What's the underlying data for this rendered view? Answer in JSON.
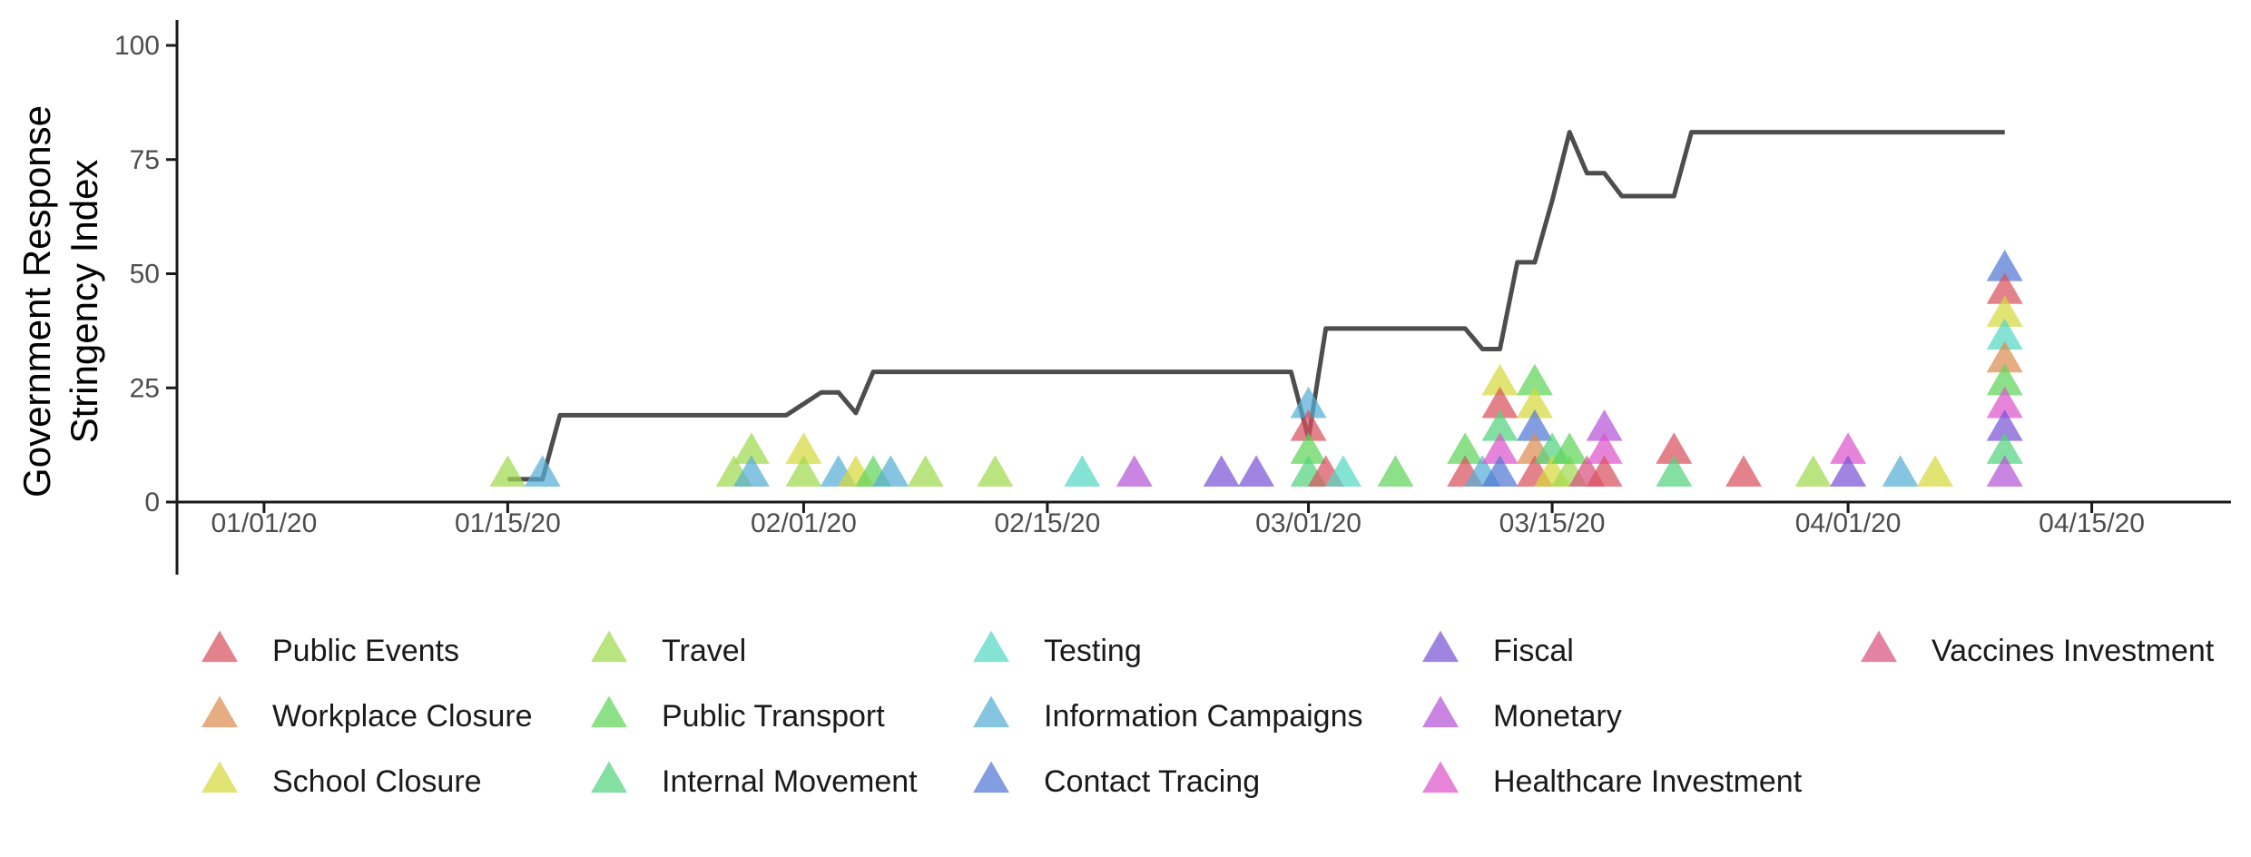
{
  "chart_data": {
    "type": "scatter",
    "ylabel_lines": [
      "Government Response",
      "Stringency Index"
    ],
    "xlabel": "",
    "ylim": [
      -15,
      105
    ],
    "y_ticks": [
      0,
      25,
      50,
      75,
      100
    ],
    "x_range": [
      "2019-12-27",
      "2020-04-23"
    ],
    "x_ticks": [
      {
        "date": "2020-01-01",
        "label": "01/01/20"
      },
      {
        "date": "2020-01-15",
        "label": "01/15/20"
      },
      {
        "date": "2020-02-01",
        "label": "02/01/20"
      },
      {
        "date": "2020-02-15",
        "label": "02/15/20"
      },
      {
        "date": "2020-03-01",
        "label": "03/01/20"
      },
      {
        "date": "2020-03-15",
        "label": "03/15/20"
      },
      {
        "date": "2020-04-01",
        "label": "04/01/20"
      },
      {
        "date": "2020-04-15",
        "label": "04/15/20"
      }
    ],
    "grid": false,
    "legend_position": "bottom",
    "line_color": "#4d4d4d",
    "stringency_line": [
      [
        "2020-01-15",
        5
      ],
      [
        "2020-01-17",
        5
      ],
      [
        "2020-01-18",
        19
      ],
      [
        "2020-01-31",
        19
      ],
      [
        "2020-02-02",
        24
      ],
      [
        "2020-02-03",
        24
      ],
      [
        "2020-02-04",
        19.5
      ],
      [
        "2020-02-05",
        28.5
      ],
      [
        "2020-02-29",
        28.5
      ],
      [
        "2020-03-01",
        14
      ],
      [
        "2020-03-02",
        38
      ],
      [
        "2020-03-10",
        38
      ],
      [
        "2020-03-11",
        33.5
      ],
      [
        "2020-03-12",
        33.5
      ],
      [
        "2020-03-13",
        52.5
      ],
      [
        "2020-03-14",
        52.5
      ],
      [
        "2020-03-15",
        66
      ],
      [
        "2020-03-16",
        81
      ],
      [
        "2020-03-17",
        72
      ],
      [
        "2020-03-18",
        72
      ],
      [
        "2020-03-19",
        67
      ],
      [
        "2020-03-22",
        67
      ],
      [
        "2020-03-23",
        81
      ],
      [
        "2020-04-10",
        81
      ]
    ],
    "categories": [
      {
        "name": "Public Events",
        "color": "#d9525e"
      },
      {
        "name": "Workplace Closure",
        "color": "#dc8e52"
      },
      {
        "name": "School Closure",
        "color": "#d6d83b"
      },
      {
        "name": "Travel",
        "color": "#a0da4e"
      },
      {
        "name": "Public Transport",
        "color": "#5fd45a"
      },
      {
        "name": "Internal Movement",
        "color": "#54d47e"
      },
      {
        "name": "Testing",
        "color": "#55d8c3"
      },
      {
        "name": "Information Campaigns",
        "color": "#56aed6"
      },
      {
        "name": "Contact Tracing",
        "color": "#5279d6"
      },
      {
        "name": "Fiscal",
        "color": "#7a55d6"
      },
      {
        "name": "Monetary",
        "color": "#b655d6"
      },
      {
        "name": "Healthcare Investment",
        "color": "#dc55cc"
      },
      {
        "name": "Vaccines Investment",
        "color": "#d9527f"
      }
    ],
    "events": [
      {
        "date": "2020-01-15",
        "y": 6,
        "category": "Travel"
      },
      {
        "date": "2020-01-17",
        "y": 6,
        "category": "Information Campaigns"
      },
      {
        "date": "2020-01-28",
        "y": 6,
        "category": "Travel"
      },
      {
        "date": "2020-01-29",
        "y": 11,
        "category": "Travel"
      },
      {
        "date": "2020-01-29",
        "y": 6,
        "category": "Information Campaigns"
      },
      {
        "date": "2020-02-01",
        "y": 11,
        "category": "School Closure"
      },
      {
        "date": "2020-02-01",
        "y": 6,
        "category": "Travel"
      },
      {
        "date": "2020-02-03",
        "y": 6,
        "category": "Information Campaigns"
      },
      {
        "date": "2020-02-04",
        "y": 6,
        "category": "School Closure"
      },
      {
        "date": "2020-02-05",
        "y": 6,
        "category": "Public Transport"
      },
      {
        "date": "2020-02-06",
        "y": 6,
        "category": "Information Campaigns"
      },
      {
        "date": "2020-02-08",
        "y": 6,
        "category": "Travel"
      },
      {
        "date": "2020-02-12",
        "y": 6,
        "category": "Travel"
      },
      {
        "date": "2020-02-17",
        "y": 6,
        "category": "Testing"
      },
      {
        "date": "2020-02-20",
        "y": 6,
        "category": "Monetary"
      },
      {
        "date": "2020-02-25",
        "y": 6,
        "category": "Fiscal"
      },
      {
        "date": "2020-02-27",
        "y": 6,
        "category": "Fiscal"
      },
      {
        "date": "2020-03-01",
        "y": 21,
        "category": "Information Campaigns"
      },
      {
        "date": "2020-03-01",
        "y": 16,
        "category": "Public Events"
      },
      {
        "date": "2020-03-01",
        "y": 11,
        "category": "Public Transport"
      },
      {
        "date": "2020-03-01",
        "y": 6,
        "category": "Internal Movement"
      },
      {
        "date": "2020-03-02",
        "y": 6,
        "category": "Public Events"
      },
      {
        "date": "2020-03-03",
        "y": 6,
        "category": "Testing"
      },
      {
        "date": "2020-03-06",
        "y": 6,
        "category": "Public Transport"
      },
      {
        "date": "2020-03-10",
        "y": 11,
        "category": "Public Transport"
      },
      {
        "date": "2020-03-10",
        "y": 6,
        "category": "Public Events"
      },
      {
        "date": "2020-03-11",
        "y": 6,
        "category": "Information Campaigns"
      },
      {
        "date": "2020-03-12",
        "y": 26,
        "category": "School Closure"
      },
      {
        "date": "2020-03-12",
        "y": 21,
        "category": "Public Events"
      },
      {
        "date": "2020-03-12",
        "y": 16,
        "category": "Internal Movement"
      },
      {
        "date": "2020-03-12",
        "y": 11,
        "category": "Healthcare Investment"
      },
      {
        "date": "2020-03-12",
        "y": 6,
        "category": "Contact Tracing"
      },
      {
        "date": "2020-03-14",
        "y": 26,
        "category": "Public Transport"
      },
      {
        "date": "2020-03-14",
        "y": 21,
        "category": "School Closure"
      },
      {
        "date": "2020-03-14",
        "y": 16,
        "category": "Contact Tracing"
      },
      {
        "date": "2020-03-14",
        "y": 11,
        "category": "Workplace Closure"
      },
      {
        "date": "2020-03-14",
        "y": 6,
        "category": "Public Events"
      },
      {
        "date": "2020-03-15",
        "y": 11,
        "category": "Internal Movement"
      },
      {
        "date": "2020-03-15",
        "y": 6,
        "category": "School Closure"
      },
      {
        "date": "2020-03-16",
        "y": 6,
        "category": "Travel"
      },
      {
        "date": "2020-03-16",
        "y": 11,
        "category": "Public Transport"
      },
      {
        "date": "2020-03-17",
        "y": 6,
        "category": "Vaccines Investment"
      },
      {
        "date": "2020-03-18",
        "y": 16,
        "category": "Monetary"
      },
      {
        "date": "2020-03-18",
        "y": 11,
        "category": "Healthcare Investment"
      },
      {
        "date": "2020-03-18",
        "y": 6,
        "category": "Public Events"
      },
      {
        "date": "2020-03-22",
        "y": 11,
        "category": "Public Events"
      },
      {
        "date": "2020-03-22",
        "y": 6,
        "category": "Internal Movement"
      },
      {
        "date": "2020-03-26",
        "y": 6,
        "category": "Public Events"
      },
      {
        "date": "2020-03-30",
        "y": 6,
        "category": "Travel"
      },
      {
        "date": "2020-04-01",
        "y": 11,
        "category": "Healthcare Investment"
      },
      {
        "date": "2020-04-01",
        "y": 6,
        "category": "Fiscal"
      },
      {
        "date": "2020-04-04",
        "y": 6,
        "category": "Information Campaigns"
      },
      {
        "date": "2020-04-06",
        "y": 6,
        "category": "School Closure"
      },
      {
        "date": "2020-04-10",
        "y": 51,
        "category": "Contact Tracing"
      },
      {
        "date": "2020-04-10",
        "y": 46,
        "category": "Public Events"
      },
      {
        "date": "2020-04-10",
        "y": 41,
        "category": "School Closure"
      },
      {
        "date": "2020-04-10",
        "y": 36,
        "category": "Testing"
      },
      {
        "date": "2020-04-10",
        "y": 31,
        "category": "Workplace Closure"
      },
      {
        "date": "2020-04-10",
        "y": 26,
        "category": "Public Transport"
      },
      {
        "date": "2020-04-10",
        "y": 21,
        "category": "Healthcare Investment"
      },
      {
        "date": "2020-04-10",
        "y": 16,
        "category": "Fiscal"
      },
      {
        "date": "2020-04-10",
        "y": 11,
        "category": "Internal Movement"
      },
      {
        "date": "2020-04-10",
        "y": 6,
        "category": "Monetary"
      }
    ]
  }
}
